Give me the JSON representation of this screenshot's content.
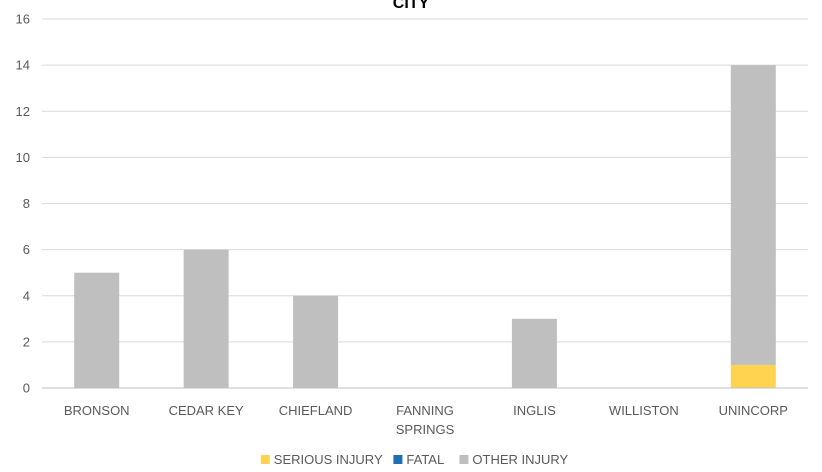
{
  "chart_data": {
    "type": "bar",
    "stacked": true,
    "title": "CITY",
    "categories": [
      "BRONSON",
      "CEDAR KEY",
      "CHIEFLAND",
      "FANNING SPRINGS",
      "INGLIS",
      "WILLISTON",
      "UNINCORP"
    ],
    "category_lines": [
      [
        "BRONSON"
      ],
      [
        "CEDAR KEY"
      ],
      [
        "CHIEFLAND"
      ],
      [
        "FANNING",
        "SPRINGS"
      ],
      [
        "INGLIS"
      ],
      [
        "WILLISTON"
      ],
      [
        "UNINCORP"
      ]
    ],
    "series": [
      {
        "name": "SERIOUS INJURY",
        "color": "#FFD34F",
        "values": [
          0,
          0,
          0,
          0,
          0,
          0,
          1
        ]
      },
      {
        "name": "FATAL",
        "color": "#1F6FB5",
        "values": [
          0,
          0,
          0,
          0,
          0,
          0,
          0
        ]
      },
      {
        "name": "OTHER INJURY",
        "color": "#BFBFBF",
        "values": [
          5,
          6,
          4,
          0,
          3,
          0,
          13
        ]
      }
    ],
    "ylim": [
      0,
      16
    ],
    "yticks": [
      0,
      2,
      4,
      6,
      8,
      10,
      12,
      14,
      16
    ],
    "grid": true,
    "legend_position": "bottom",
    "colors": {
      "gridline": "#D9D9D9",
      "axis": "#BFBFBF",
      "text": "#595959"
    }
  }
}
